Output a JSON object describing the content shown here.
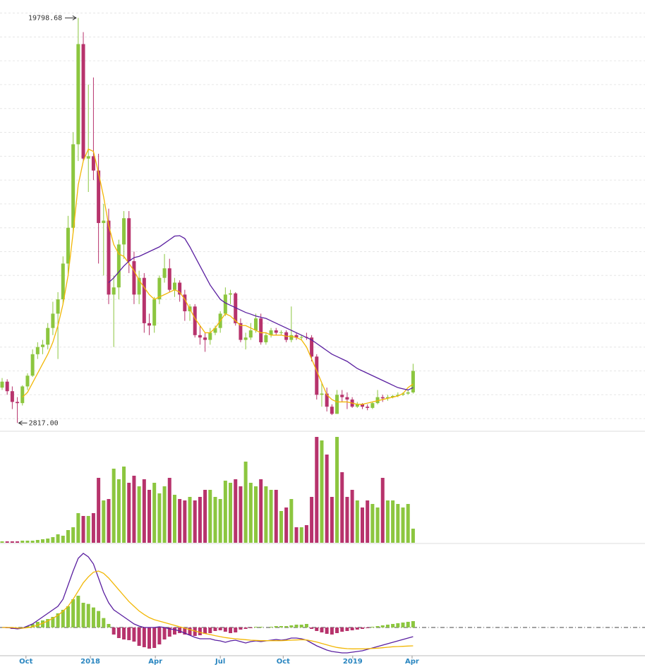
{
  "chart_data": [
    {
      "type": "candlestick",
      "candles": [
        [
          4300,
          4700,
          4200,
          4550
        ],
        [
          4550,
          4650,
          4000,
          4150
        ],
        [
          4150,
          4350,
          3400,
          3700
        ],
        [
          3700,
          3900,
          2817,
          3650
        ],
        [
          3650,
          4400,
          3550,
          4350
        ],
        [
          4350,
          4900,
          4200,
          4800
        ],
        [
          4800,
          5900,
          4750,
          5700
        ],
        [
          5700,
          6200,
          5500,
          6000
        ],
        [
          6000,
          6300,
          5700,
          6100
        ],
        [
          6100,
          7000,
          5900,
          6800
        ],
        [
          6800,
          7900,
          6500,
          7400
        ],
        [
          7400,
          8300,
          5500,
          8000
        ],
        [
          8000,
          9800,
          7800,
          9500
        ],
        [
          9500,
          11500,
          9000,
          11000
        ],
        [
          11000,
          15000,
          10800,
          14500
        ],
        [
          14500,
          19798.68,
          13800,
          18700
        ],
        [
          18700,
          19200,
          13800,
          13900
        ],
        [
          13900,
          17000,
          12500,
          14000
        ],
        [
          14000,
          17300,
          13000,
          13400
        ],
        [
          13400,
          14100,
          9500,
          11200
        ],
        [
          11200,
          12000,
          9000,
          11300
        ],
        [
          11300,
          11800,
          7800,
          8200
        ],
        [
          8200,
          9000,
          6000,
          8500
        ],
        [
          8500,
          10500,
          8000,
          10300
        ],
        [
          10300,
          11700,
          9700,
          11400
        ],
        [
          11400,
          11700,
          9100,
          9600
        ],
        [
          9600,
          10000,
          7800,
          8200
        ],
        [
          8200,
          9200,
          7800,
          8900
        ],
        [
          8900,
          9100,
          6600,
          7000
        ],
        [
          7000,
          7400,
          6500,
          6900
        ],
        [
          6900,
          8100,
          6600,
          8000
        ],
        [
          8000,
          9000,
          7800,
          8900
        ],
        [
          8900,
          9900,
          8700,
          9300
        ],
        [
          9300,
          9700,
          8300,
          8400
        ],
        [
          8400,
          8900,
          8100,
          8700
        ],
        [
          8700,
          8800,
          7900,
          8200
        ],
        [
          8200,
          8400,
          7100,
          7500
        ],
        [
          7500,
          7800,
          7100,
          7700
        ],
        [
          7700,
          7800,
          6400,
          6500
        ],
        [
          6500,
          6900,
          6100,
          6400
        ],
        [
          6400,
          6600,
          5800,
          6300
        ],
        [
          6300,
          6800,
          6100,
          6600
        ],
        [
          6600,
          6900,
          6500,
          6800
        ],
        [
          6800,
          7500,
          6600,
          7400
        ],
        [
          7400,
          8500,
          7300,
          8200
        ],
        [
          8200,
          8400,
          7800,
          8250
        ],
        [
          8250,
          8300,
          6900,
          7000
        ],
        [
          7000,
          7200,
          6200,
          6300
        ],
        [
          6300,
          6600,
          5900,
          6400
        ],
        [
          6400,
          7000,
          6300,
          6700
        ],
        [
          6700,
          7400,
          6600,
          7200
        ],
        [
          7200,
          7400,
          6100,
          6200
        ],
        [
          6200,
          6600,
          6100,
          6500
        ],
        [
          6500,
          6800,
          6400,
          6700
        ],
        [
          6700,
          6800,
          6500,
          6600
        ],
        [
          6600,
          6700,
          6500,
          6620
        ],
        [
          6620,
          6700,
          6200,
          6300
        ],
        [
          6300,
          7700,
          6200,
          6500
        ],
        [
          6500,
          6600,
          6300,
          6400
        ],
        [
          6400,
          6500,
          6300,
          6420
        ],
        [
          6420,
          6600,
          6300,
          6400
        ],
        [
          6400,
          6500,
          5400,
          5600
        ],
        [
          5600,
          5700,
          3800,
          4000
        ],
        [
          4000,
          4500,
          3500,
          4050
        ],
        [
          4050,
          4300,
          3300,
          3500
        ],
        [
          3500,
          3600,
          3150,
          3200
        ],
        [
          3200,
          4200,
          3200,
          4000
        ],
        [
          4000,
          4200,
          3700,
          3900
        ],
        [
          3900,
          4100,
          3400,
          3800
        ],
        [
          3800,
          3900,
          3450,
          3500
        ],
        [
          3500,
          3700,
          3450,
          3600
        ],
        [
          3600,
          3650,
          3400,
          3500
        ],
        [
          3500,
          3600,
          3350,
          3450
        ],
        [
          3450,
          3700,
          3400,
          3650
        ],
        [
          3650,
          4200,
          3600,
          3900
        ],
        [
          3900,
          4000,
          3700,
          3850
        ],
        [
          3850,
          4000,
          3750,
          3900
        ],
        [
          3900,
          4000,
          3850,
          3950
        ],
        [
          3950,
          4100,
          3900,
          4000
        ],
        [
          4000,
          4100,
          3950,
          4050
        ],
        [
          4050,
          4200,
          4000,
          4100
        ],
        [
          4100,
          5300,
          4050,
          5000
        ]
      ],
      "color_up": "#8cc63f",
      "color_down": "#b7336c",
      "series": [
        {
          "color": "#f2b705",
          "values": [
            null,
            null,
            null,
            null,
            3900,
            4100,
            4500,
            4900,
            5300,
            5700,
            6200,
            6900,
            7800,
            9000,
            10800,
            12800,
            13800,
            14300,
            14200,
            13300,
            12300,
            11100,
            10300,
            9900,
            9800,
            9500,
            9200,
            8800,
            8500,
            8200,
            8000,
            8100,
            8200,
            8300,
            8400,
            8300,
            8000,
            7600,
            7200,
            6900,
            6600,
            6600,
            6800,
            7100,
            7400,
            7300,
            7100,
            6900,
            6900,
            6800,
            6700,
            6600,
            6600,
            6500,
            6500,
            6500,
            6450,
            6450,
            6400,
            6300,
            6000,
            5500,
            5000,
            4500,
            4000,
            3800,
            3700,
            3700,
            3700,
            3650,
            3600,
            3600,
            3650,
            3700,
            3750,
            3800,
            3850,
            3900,
            3950,
            4050,
            4300,
            4450
          ]
        },
        {
          "color": "#5a1fa0",
          "values": [
            null,
            null,
            null,
            null,
            null,
            null,
            null,
            null,
            null,
            null,
            null,
            null,
            null,
            null,
            null,
            null,
            null,
            null,
            null,
            null,
            null,
            8700,
            8900,
            9150,
            9400,
            9600,
            9750,
            9800,
            9900,
            10000,
            10100,
            10200,
            10350,
            10500,
            10650,
            10670,
            10550,
            10200,
            9800,
            9400,
            9000,
            8600,
            8300,
            8000,
            7850,
            7750,
            7650,
            7550,
            7450,
            7380,
            7300,
            7250,
            7200,
            7100,
            7000,
            6900,
            6800,
            6700,
            6600,
            6500,
            6400,
            6300,
            6150,
            6000,
            5850,
            5700,
            5600,
            5500,
            5400,
            5250,
            5100,
            5000,
            4900,
            4800,
            4700,
            4600,
            4500,
            4400,
            4300,
            4250,
            4200,
            4300
          ]
        }
      ],
      "max_label": 19798.68,
      "min_label": {
        "value": 2817,
        "label": "2817.00"
      },
      "ylim": [
        2500,
        20400
      ],
      "yticks": [
        3000,
        4000,
        5000,
        6000,
        7000,
        8000,
        9000,
        10000,
        11000,
        12000,
        13000,
        14000,
        15000,
        16000,
        17000,
        18000,
        19000,
        20000
      ],
      "grid": true
    },
    {
      "type": "bar",
      "values": [
        2,
        2,
        2,
        2,
        3,
        3,
        3,
        4,
        5,
        6,
        8,
        12,
        10,
        18,
        22,
        42,
        38,
        38,
        42,
        92,
        60,
        62,
        105,
        90,
        108,
        85,
        95,
        80,
        90,
        75,
        85,
        70,
        80,
        92,
        68,
        62,
        60,
        65,
        60,
        65,
        75,
        75,
        65,
        62,
        88,
        85,
        90,
        80,
        115,
        85,
        80,
        90,
        80,
        75,
        75,
        45,
        50,
        62,
        22,
        22,
        25,
        65,
        150,
        145,
        125,
        65,
        150,
        100,
        65,
        75,
        60,
        50,
        60,
        55,
        50,
        92,
        60,
        60,
        55,
        50,
        55,
        20
      ],
      "ylim": [
        0,
        155
      ]
    },
    {
      "type": "line",
      "histogram": [
        0,
        -30,
        -60,
        -60,
        0,
        60,
        150,
        240,
        300,
        360,
        450,
        600,
        750,
        900,
        1200,
        1350,
        1050,
        1000,
        850,
        700,
        400,
        150,
        -300,
        -450,
        -510,
        -540,
        -600,
        -780,
        -840,
        -900,
        -870,
        -720,
        -510,
        -390,
        -300,
        -240,
        -300,
        -330,
        -360,
        -330,
        -270,
        -240,
        -150,
        -120,
        -180,
        -240,
        -210,
        -90,
        -60,
        -30,
        30,
        30,
        0,
        30,
        60,
        60,
        60,
        90,
        120,
        120,
        150,
        -60,
        -150,
        -210,
        -270,
        -300,
        -240,
        -180,
        -150,
        -120,
        -90,
        -60,
        -30,
        30,
        60,
        90,
        120,
        150,
        180,
        210,
        240,
        270
      ],
      "series": [
        {
          "color": "#5a1fa0",
          "values": [
            0,
            0,
            -30,
            -60,
            -30,
            60,
            150,
            300,
            450,
            600,
            750,
            900,
            1200,
            1800,
            2400,
            2940,
            3150,
            3000,
            2700,
            2100,
            1500,
            1050,
            750,
            600,
            450,
            300,
            150,
            60,
            0,
            0,
            0,
            30,
            0,
            -60,
            -90,
            -150,
            -240,
            -330,
            -420,
            -480,
            -480,
            -480,
            -540,
            -570,
            -630,
            -570,
            -540,
            -600,
            -660,
            -600,
            -570,
            -600,
            -570,
            -540,
            -510,
            -540,
            -510,
            -450,
            -450,
            -480,
            -540,
            -660,
            -780,
            -870,
            -960,
            -1020,
            -1050,
            -1080,
            -1080,
            -1050,
            -1020,
            -990,
            -930,
            -870,
            -810,
            -750,
            -690,
            -630,
            -570,
            -510,
            -450,
            -390
          ]
        },
        {
          "color": "#f2b705",
          "values": [
            0,
            0,
            0,
            -20,
            -30,
            -10,
            30,
            100,
            180,
            280,
            390,
            520,
            690,
            900,
            1200,
            1550,
            1900,
            2150,
            2350,
            2400,
            2300,
            2100,
            1850,
            1600,
            1350,
            1100,
            900,
            700,
            550,
            420,
            330,
            270,
            210,
            150,
            90,
            30,
            -30,
            -90,
            -150,
            -210,
            -260,
            -300,
            -350,
            -390,
            -430,
            -460,
            -480,
            -500,
            -520,
            -540,
            -550,
            -560,
            -560,
            -560,
            -560,
            -560,
            -550,
            -540,
            -530,
            -520,
            -530,
            -570,
            -620,
            -680,
            -740,
            -800,
            -850,
            -880,
            -900,
            -910,
            -910,
            -910,
            -900,
            -890,
            -880,
            -860,
            -840,
            -820,
            -810,
            -800,
            -790,
            -780
          ]
        }
      ],
      "ylim": [
        -1200,
        3600
      ],
      "xticks": [
        {
          "value": 4.7,
          "label": "Oct"
        },
        {
          "value": 17.4,
          "label": "2018"
        },
        {
          "value": 30.2,
          "label": "Apr"
        },
        {
          "value": 43,
          "label": "Jul"
        },
        {
          "value": 55.4,
          "label": "Oct"
        },
        {
          "value": 69.1,
          "label": "2019"
        },
        {
          "value": 80.8,
          "label": "Apr"
        }
      ]
    }
  ]
}
